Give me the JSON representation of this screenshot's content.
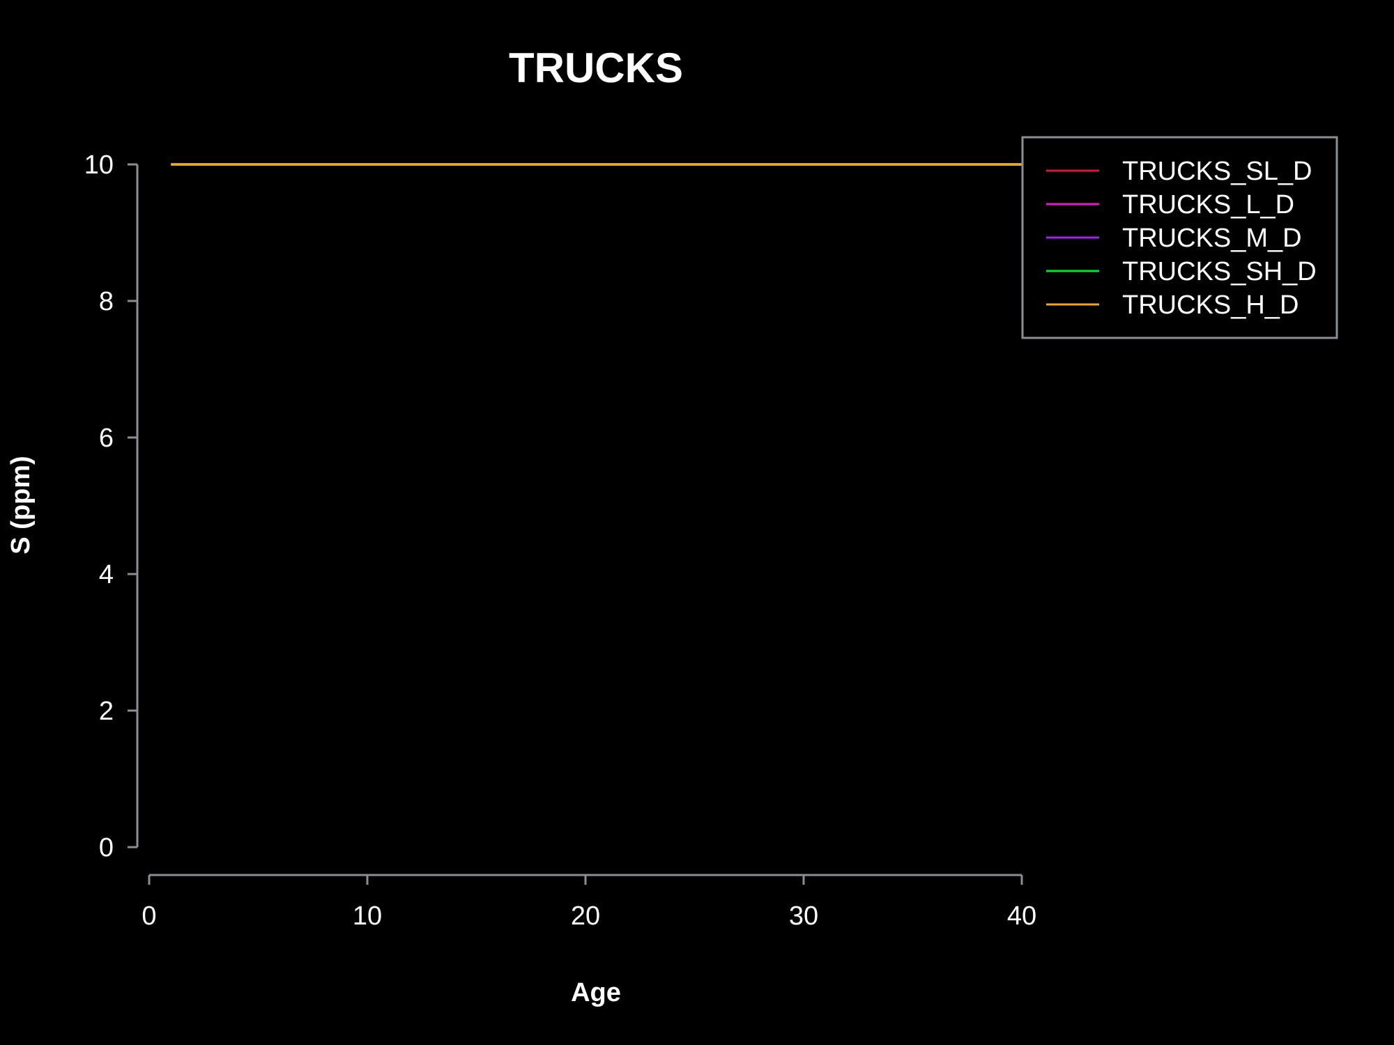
{
  "chart_data": {
    "type": "line",
    "title": "TRUCKS",
    "xlabel": "Age",
    "ylabel": "S (ppm)",
    "xlim": [
      0,
      40
    ],
    "ylim": [
      0,
      10
    ],
    "x_ticks": [
      0,
      10,
      20,
      30,
      40
    ],
    "y_ticks": [
      0,
      2,
      4,
      6,
      8,
      10
    ],
    "grid": false,
    "legend_position": "top-right",
    "series": [
      {
        "name": "TRUCKS_SL_D",
        "color": "#dc143c",
        "x": [
          1,
          40
        ],
        "y": [
          10,
          10
        ]
      },
      {
        "name": "TRUCKS_L_D",
        "color": "#e619c8",
        "x": [
          1,
          40
        ],
        "y": [
          10,
          10
        ]
      },
      {
        "name": "TRUCKS_M_D",
        "color": "#a020f0",
        "x": [
          1,
          40
        ],
        "y": [
          10,
          10
        ]
      },
      {
        "name": "TRUCKS_SH_D",
        "color": "#00e632",
        "x": [
          1,
          40
        ],
        "y": [
          10,
          10
        ]
      },
      {
        "name": "TRUCKS_H_D",
        "color": "#f0a528",
        "x": [
          1,
          40
        ],
        "y": [
          10,
          10
        ]
      }
    ]
  }
}
